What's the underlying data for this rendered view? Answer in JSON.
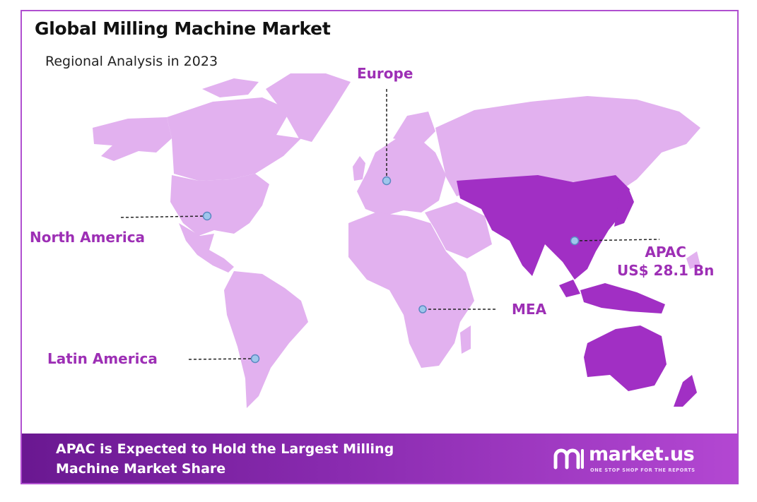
{
  "header": {
    "title": "Global Milling Machine Market",
    "subtitle": "Regional Analysis in 2023"
  },
  "map": {
    "land_color": "#e2b1ef",
    "highlight_color": "#a12fc4",
    "highlighted_region": "APAC",
    "regions": [
      {
        "name": "Europe"
      },
      {
        "name": "North America"
      },
      {
        "name": "APAC",
        "value": "US$ 28.1 Bn"
      },
      {
        "name": "MEA"
      },
      {
        "name": "Latin America"
      }
    ]
  },
  "footer": {
    "headline_line1": "APAC is Expected to Hold the Largest Milling",
    "headline_line2": "Machine Market Share"
  },
  "brand": {
    "name": "market.us",
    "tagline": "ONE STOP SHOP FOR THE REPORTS",
    "icon": "market-us-logo-icon"
  }
}
